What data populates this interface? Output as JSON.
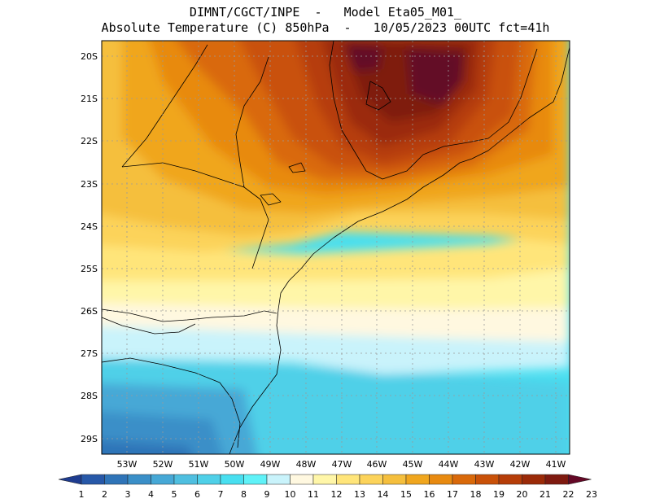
{
  "header": {
    "line1": "DIMNT/CGCT/INPE  -   Model Eta05_M01_",
    "line2": "Absolute Temperature (C) 850hPa  -   10/05/2023 00UTC fct=41h"
  },
  "map": {
    "lat_labels": [
      "20S",
      "21S",
      "22S",
      "23S",
      "24S",
      "25S",
      "26S",
      "27S",
      "28S",
      "29S"
    ],
    "lon_labels": [
      "53W",
      "52W",
      "51W",
      "50W",
      "49W",
      "48W",
      "47W",
      "46W",
      "45W",
      "44W",
      "43W",
      "42W",
      "41W"
    ]
  },
  "colorbar": {
    "labels": [
      "1",
      "2",
      "3",
      "4",
      "5",
      "6",
      "7",
      "8",
      "9",
      "10",
      "11",
      "12",
      "13",
      "14",
      "15",
      "16",
      "17",
      "18",
      "19",
      "20",
      "21",
      "22",
      "23"
    ],
    "colors": [
      "#1e3c8f",
      "#2758a8",
      "#2f74b8",
      "#3a8fc8",
      "#46a8d6",
      "#4fbfe0",
      "#4fd0e8",
      "#48dff0",
      "#5ff2f8",
      "#c9f3fb",
      "#fff8e0",
      "#fff6a8",
      "#ffe57a",
      "#fcd35a",
      "#f5bf3d",
      "#f0a61e",
      "#e88a10",
      "#d9690a",
      "#c95108",
      "#b63d08",
      "#9b2a08",
      "#7f1a10",
      "#640826"
    ]
  }
}
